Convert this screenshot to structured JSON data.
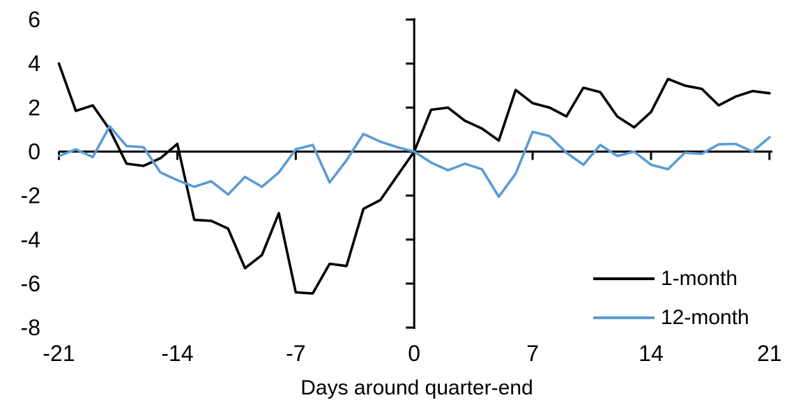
{
  "chart_data": {
    "type": "line",
    "title": "",
    "xlabel": "Days around quarter-end",
    "ylabel": "",
    "xlim": [
      -21,
      21
    ],
    "ylim": [
      -8,
      6
    ],
    "grid": false,
    "legend_position": "lower-right",
    "x_ticks": [
      -21,
      -14,
      -7,
      0,
      7,
      14,
      21
    ],
    "y_ticks": [
      6,
      4,
      2,
      0,
      -2,
      -4,
      -6,
      -8
    ],
    "x": [
      -21,
      -20,
      -19,
      -18,
      -17,
      -16,
      -15,
      -14,
      -13,
      -12,
      -11,
      -10,
      -9,
      -8,
      -7,
      -6,
      -5,
      -4,
      -3,
      -2,
      -1,
      0,
      1,
      2,
      3,
      4,
      5,
      6,
      7,
      8,
      9,
      10,
      11,
      12,
      13,
      14,
      15,
      16,
      17,
      18,
      19,
      20,
      21
    ],
    "series": [
      {
        "name": "1-month",
        "color": "#000000",
        "values": [
          4.0,
          1.85,
          2.1,
          1.0,
          -0.55,
          -0.65,
          -0.3,
          0.35,
          -3.1,
          -3.15,
          -3.5,
          -5.3,
          -4.7,
          -2.8,
          -6.4,
          -6.45,
          -5.1,
          -5.2,
          -2.6,
          -2.2,
          -1.1,
          0.0,
          1.9,
          2.0,
          1.4,
          1.05,
          0.5,
          2.8,
          2.2,
          2.0,
          1.6,
          2.9,
          2.7,
          1.6,
          1.1,
          1.8,
          3.3,
          3.0,
          2.85,
          2.1,
          2.5,
          2.75,
          2.65
        ]
      },
      {
        "name": "12-month",
        "color": "#5B9BD5",
        "values": [
          -0.2,
          0.1,
          -0.25,
          1.15,
          0.25,
          0.2,
          -0.95,
          -1.3,
          -1.6,
          -1.35,
          -1.95,
          -1.15,
          -1.6,
          -0.95,
          0.1,
          0.3,
          -1.4,
          -0.4,
          0.8,
          0.45,
          0.2,
          0.0,
          -0.5,
          -0.85,
          -0.55,
          -0.8,
          -2.05,
          -1.0,
          0.9,
          0.7,
          -0.05,
          -0.6,
          0.3,
          -0.2,
          0.0,
          -0.6,
          -0.8,
          -0.05,
          -0.1,
          0.33,
          0.35,
          0.0,
          0.65
        ]
      }
    ]
  }
}
